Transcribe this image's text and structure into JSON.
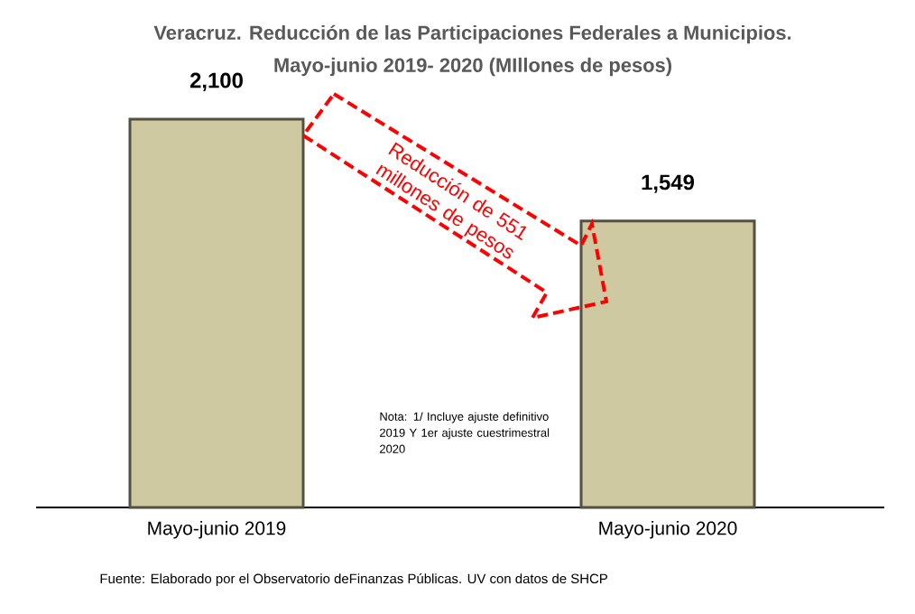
{
  "chart_data": {
    "type": "bar",
    "title": "Veracruz. Reducción de las Participaciones Federales a Municipios.",
    "subtitle": "Mayo-junio 2019- 2020 (MIllones de pesos)",
    "categories": [
      "Mayo-junio 2019",
      "Mayo-junio 2020"
    ],
    "values": [
      2100,
      1549
    ],
    "value_labels": [
      "2,100",
      "1,549"
    ],
    "color": "#cfc9a1",
    "annotations": [
      "Reducción de 551 millones de pesos",
      "Nota: 1/ Incluye ajuste definitivo 2019 Y 1er ajuste cuestrimestral 2020",
      "Fuente: Elaborado por el Observatorio deFinanzas Públicas. UV con datos de SHCP"
    ]
  }
}
